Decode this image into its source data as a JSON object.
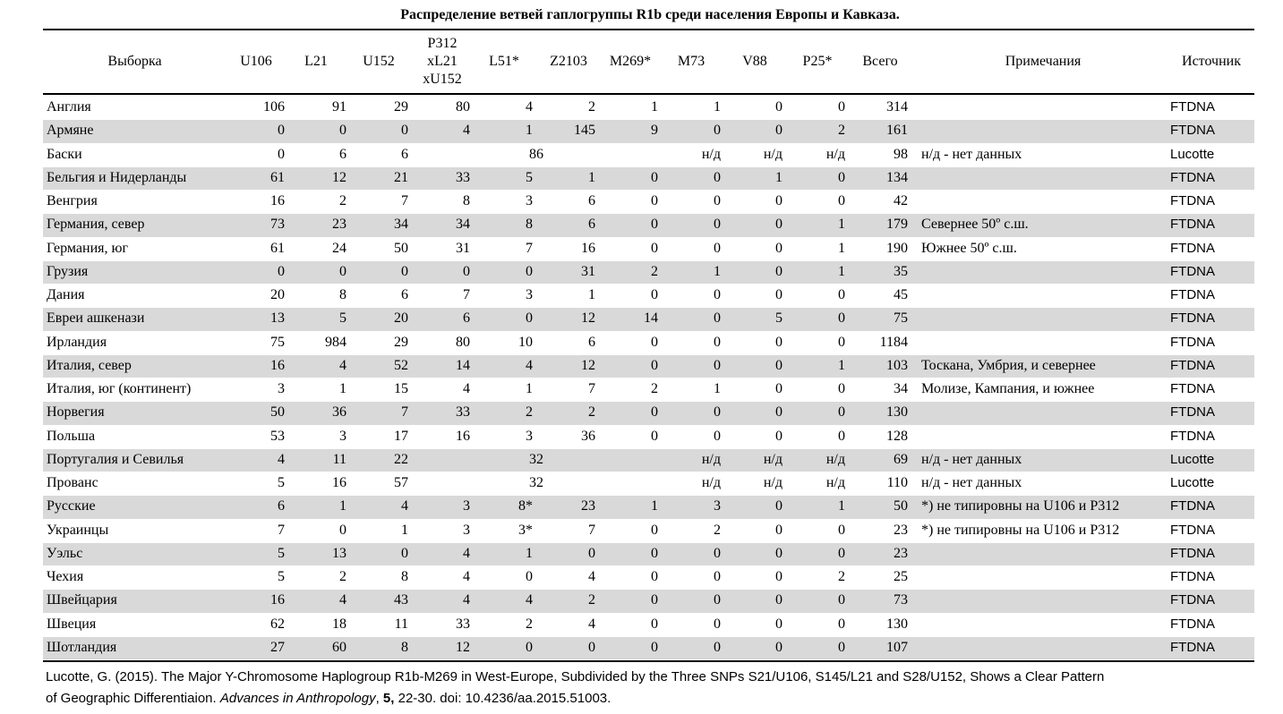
{
  "title": "Распределение  ветвей гаплогруппы R1b среди населения Европы и Кавказа.",
  "headers": {
    "sample": "Выборка",
    "u106": "U106",
    "l21": "L21",
    "u152": "U152",
    "p312_line1": "P312",
    "p312_line2": "xL21",
    "p312_line3": "xU152",
    "l51": "L51*",
    "z2103": "Z2103",
    "m269": "M269*",
    "m73": "M73",
    "v88": "V88",
    "p25": "P25*",
    "total": "Всего",
    "notes": "Примечания",
    "source": "Источник"
  },
  "rows": [
    {
      "name": "Англия",
      "u106": "106",
      "l21": "91",
      "u152": "29",
      "p312": "80",
      "l51": "4",
      "z2103": "2",
      "m269": "1",
      "m73": "1",
      "v88": "0",
      "p25": "0",
      "total": "314",
      "note": "",
      "src": "FTDNA",
      "shade": false
    },
    {
      "name": "Армяне",
      "u106": "0",
      "l21": "0",
      "u152": "0",
      "p312": "4",
      "l51": "1",
      "z2103": "145",
      "m269": "9",
      "m73": "0",
      "v88": "0",
      "p25": "2",
      "total": "161",
      "note": "",
      "src": "FTDNA",
      "shade": true
    },
    {
      "name": "Баски",
      "u106": "0",
      "l21": "6",
      "u152": "6",
      "span": "86",
      "m73": "н/д",
      "v88": "н/д",
      "p25": "н/д",
      "total": "98",
      "note": "н/д - нет данных",
      "src": "Lucotte",
      "shade": false
    },
    {
      "name": "Бельгия и Нидерланды",
      "u106": "61",
      "l21": "12",
      "u152": "21",
      "p312": "33",
      "l51": "5",
      "z2103": "1",
      "m269": "0",
      "m73": "0",
      "v88": "1",
      "p25": "0",
      "total": "134",
      "note": "",
      "src": "FTDNA",
      "shade": true
    },
    {
      "name": "Венгрия",
      "u106": "16",
      "l21": "2",
      "u152": "7",
      "p312": "8",
      "l51": "3",
      "z2103": "6",
      "m269": "0",
      "m73": "0",
      "v88": "0",
      "p25": "0",
      "total": "42",
      "note": "",
      "src": "FTDNA",
      "shade": false
    },
    {
      "name": "Германия, север",
      "u106": "73",
      "l21": "23",
      "u152": "34",
      "p312": "34",
      "l51": "8",
      "z2103": "6",
      "m269": "0",
      "m73": "0",
      "v88": "0",
      "p25": "1",
      "total": "179",
      "note": "Севернее 50º с.ш.",
      "src": "FTDNA",
      "shade": true
    },
    {
      "name": "Германия, юг",
      "u106": "61",
      "l21": "24",
      "u152": "50",
      "p312": "31",
      "l51": "7",
      "z2103": "16",
      "m269": "0",
      "m73": "0",
      "v88": "0",
      "p25": "1",
      "total": "190",
      "note": "Южнее 50º с.ш.",
      "src": "FTDNA",
      "shade": false
    },
    {
      "name": "Грузия",
      "u106": "0",
      "l21": "0",
      "u152": "0",
      "p312": "0",
      "l51": "0",
      "z2103": "31",
      "m269": "2",
      "m73": "1",
      "v88": "0",
      "p25": "1",
      "total": "35",
      "note": "",
      "src": "FTDNA",
      "shade": true
    },
    {
      "name": "Дания",
      "u106": "20",
      "l21": "8",
      "u152": "6",
      "p312": "7",
      "l51": "3",
      "z2103": "1",
      "m269": "0",
      "m73": "0",
      "v88": "0",
      "p25": "0",
      "total": "45",
      "note": "",
      "src": "FTDNA",
      "shade": false
    },
    {
      "name": "Евреи ашкенази",
      "u106": "13",
      "l21": "5",
      "u152": "20",
      "p312": "6",
      "l51": "0",
      "z2103": "12",
      "m269": "14",
      "m73": "0",
      "v88": "5",
      "p25": "0",
      "total": "75",
      "note": "",
      "src": "FTDNA",
      "shade": true
    },
    {
      "name": "Ирландия",
      "u106": "75",
      "l21": "984",
      "u152": "29",
      "p312": "80",
      "l51": "10",
      "z2103": "6",
      "m269": "0",
      "m73": "0",
      "v88": "0",
      "p25": "0",
      "total": "1184",
      "note": "",
      "src": "FTDNA",
      "shade": false
    },
    {
      "name": "Италия, север",
      "u106": "16",
      "l21": "4",
      "u152": "52",
      "p312": "14",
      "l51": "4",
      "z2103": "12",
      "m269": "0",
      "m73": "0",
      "v88": "0",
      "p25": "1",
      "total": "103",
      "note": "Тоскана, Умбрия, и севернее",
      "src": "FTDNA",
      "shade": true
    },
    {
      "name": "Италия, юг (континент)",
      "u106": "3",
      "l21": "1",
      "u152": "15",
      "p312": "4",
      "l51": "1",
      "z2103": "7",
      "m269": "2",
      "m73": "1",
      "v88": "0",
      "p25": "0",
      "total": "34",
      "note": "Молизе, Кампания, и южнее",
      "src": "FTDNA",
      "shade": false
    },
    {
      "name": "Норвегия",
      "u106": "50",
      "l21": "36",
      "u152": "7",
      "p312": "33",
      "l51": "2",
      "z2103": "2",
      "m269": "0",
      "m73": "0",
      "v88": "0",
      "p25": "0",
      "total": "130",
      "note": "",
      "src": "FTDNA",
      "shade": true
    },
    {
      "name": "Польша",
      "u106": "53",
      "l21": "3",
      "u152": "17",
      "p312": "16",
      "l51": "3",
      "z2103": "36",
      "m269": "0",
      "m73": "0",
      "v88": "0",
      "p25": "0",
      "total": "128",
      "note": "",
      "src": "FTDNA",
      "shade": false
    },
    {
      "name": "Португалия и Севилья",
      "u106": "4",
      "l21": "11",
      "u152": "22",
      "span": "32",
      "m73": "н/д",
      "v88": "н/д",
      "p25": "н/д",
      "total": "69",
      "note": "н/д - нет данных",
      "src": "Lucotte",
      "shade": true
    },
    {
      "name": "Прованс",
      "u106": "5",
      "l21": "16",
      "u152": "57",
      "span": "32",
      "m73": "н/д",
      "v88": "н/д",
      "p25": "н/д",
      "total": "110",
      "note": "н/д - нет данных",
      "src": "Lucotte",
      "shade": false
    },
    {
      "name": "Русские",
      "u106": "6",
      "l21": "1",
      "u152": "4",
      "p312": "3",
      "l51": "8*",
      "z2103": "23",
      "m269": "1",
      "m73": "3",
      "v88": "0",
      "p25": "1",
      "total": "50",
      "note": "*) не типировны на U106 и P312",
      "src": "FTDNA",
      "shade": true
    },
    {
      "name": "Украинцы",
      "u106": "7",
      "l21": "0",
      "u152": "1",
      "p312": "3",
      "l51": "3*",
      "z2103": "7",
      "m269": "0",
      "m73": "2",
      "v88": "0",
      "p25": "0",
      "total": "23",
      "note": "*) не типировны на U106 и P312",
      "src": "FTDNA",
      "shade": false
    },
    {
      "name": "Уэльс",
      "u106": "5",
      "l21": "13",
      "u152": "0",
      "p312": "4",
      "l51": "1",
      "z2103": "0",
      "m269": "0",
      "m73": "0",
      "v88": "0",
      "p25": "0",
      "total": "23",
      "note": "",
      "src": "FTDNA",
      "shade": true
    },
    {
      "name": "Чехия",
      "u106": "5",
      "l21": "2",
      "u152": "8",
      "p312": "4",
      "l51": "0",
      "z2103": "4",
      "m269": "0",
      "m73": "0",
      "v88": "0",
      "p25": "2",
      "total": "25",
      "note": "",
      "src": "FTDNA",
      "shade": false
    },
    {
      "name": "Швейцария",
      "u106": "16",
      "l21": "4",
      "u152": "43",
      "p312": "4",
      "l51": "4",
      "z2103": "2",
      "m269": "0",
      "m73": "0",
      "v88": "0",
      "p25": "0",
      "total": "73",
      "note": "",
      "src": "FTDNA",
      "shade": true
    },
    {
      "name": "Швеция",
      "u106": "62",
      "l21": "18",
      "u152": "11",
      "p312": "33",
      "l51": "2",
      "z2103": "4",
      "m269": "0",
      "m73": "0",
      "v88": "0",
      "p25": "0",
      "total": "130",
      "note": "",
      "src": "FTDNA",
      "shade": false
    },
    {
      "name": "Шотландия",
      "u106": "27",
      "l21": "60",
      "u152": "8",
      "p312": "12",
      "l51": "0",
      "z2103": "0",
      "m269": "0",
      "m73": "0",
      "v88": "0",
      "p25": "0",
      "total": "107",
      "note": "",
      "src": "FTDNA",
      "shade": true
    }
  ],
  "footer": {
    "line1": "Lucotte, G. (2015). The Major Y-Chromosome Haplogroup R1b-M269 in West-Europe, Subdivided by the Three SNPs S21/U106, S145/L21 and S28/U152, Shows a Clear Pattern",
    "line2_start": "of Geographic Differentiaion. ",
    "journal": "Advances in Anthropology",
    "comma": ", ",
    "volume": "5,",
    "rest": " 22-30. doi: 10.4236/aa.2015.51003."
  }
}
